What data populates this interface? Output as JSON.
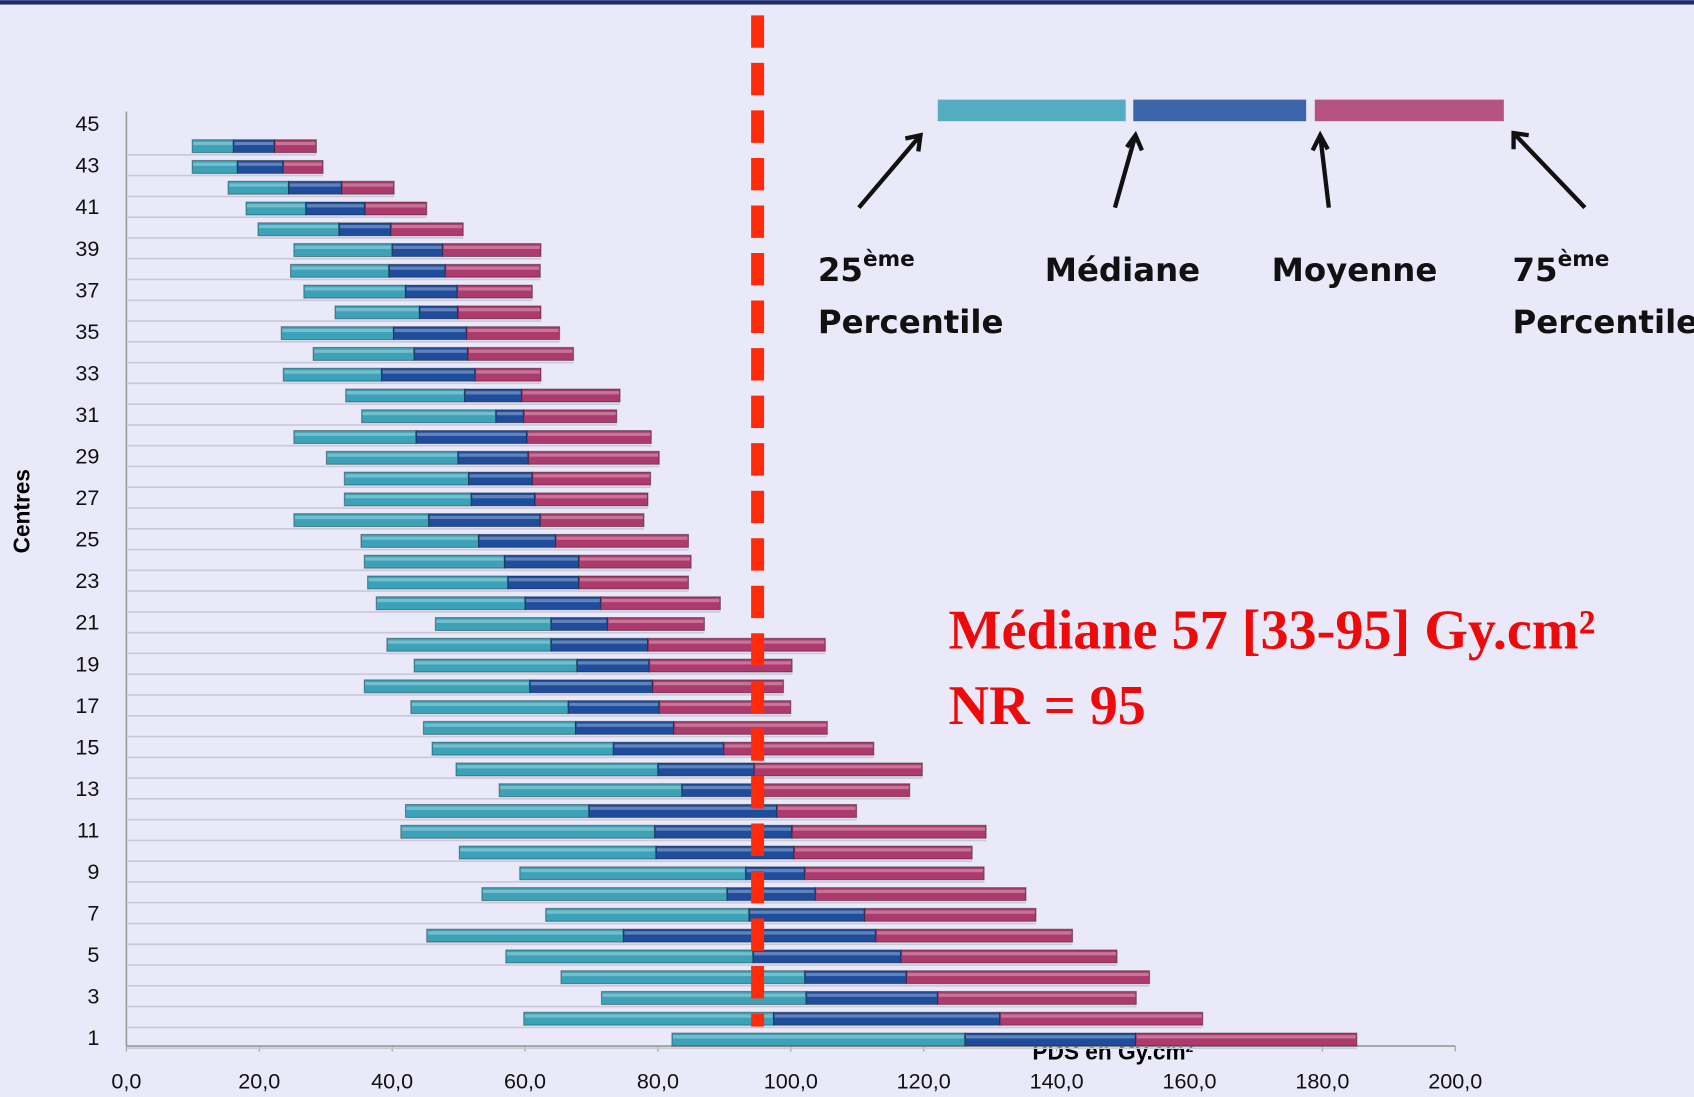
{
  "chart_data": {
    "type": "floating-bar",
    "xlabel": "PDS en Gy.cm²",
    "ylabel": "Centres",
    "categories": [
      "1",
      null,
      "3",
      null,
      "5",
      null,
      "7",
      null,
      "9",
      null,
      "11",
      null,
      "13",
      null,
      "15",
      null,
      "17",
      null,
      "19",
      null,
      "21",
      null,
      "23",
      null,
      "25",
      null,
      "27",
      null,
      "29",
      null,
      "31",
      null,
      "33",
      null,
      "35",
      null,
      "37",
      null,
      "39",
      null,
      "41",
      null,
      "43",
      null,
      "45"
    ],
    "p25": [
      82.1,
      59.8,
      71.5,
      65.4,
      57.1,
      45.2,
      63.1,
      53.5,
      59.2,
      50.1,
      41.3,
      42.0,
      56.1,
      49.6,
      46.0,
      44.7,
      42.8,
      35.8,
      43.3,
      39.2,
      46.5,
      37.6,
      36.3,
      35.8,
      35.3,
      25.2,
      32.8,
      32.8,
      30.1,
      25.2,
      35.4,
      33.0,
      23.6,
      28.1,
      23.3,
      31.4,
      26.7,
      24.7,
      25.2,
      19.8,
      18.0,
      15.3,
      9.9,
      9.9,
      null
    ],
    "median": [
      126.2,
      97.4,
      102.3,
      102.1,
      94.3,
      74.8,
      93.7,
      90.4,
      93.2,
      79.7,
      79.5,
      69.6,
      83.6,
      80.0,
      73.3,
      67.6,
      66.5,
      60.7,
      67.8,
      63.9,
      63.9,
      60.0,
      57.4,
      56.9,
      53.0,
      45.5,
      51.9,
      51.5,
      49.9,
      43.6,
      55.6,
      50.9,
      38.4,
      43.3,
      40.2,
      44.1,
      42.0,
      39.5,
      40.0,
      32.0,
      27.0,
      24.4,
      16.7,
      16.1,
      null
    ],
    "mean": [
      151.9,
      131.5,
      122.1,
      117.4,
      116.6,
      112.8,
      111.1,
      103.7,
      102.1,
      100.5,
      100.2,
      97.9,
      95.8,
      94.5,
      89.9,
      82.4,
      80.2,
      79.2,
      78.7,
      78.5,
      72.4,
      71.4,
      68.1,
      68.1,
      64.6,
      62.3,
      61.5,
      61.1,
      60.5,
      60.3,
      59.8,
      59.5,
      52.5,
      51.4,
      51.2,
      49.9,
      49.8,
      48.0,
      47.6,
      39.8,
      35.9,
      32.4,
      23.6,
      22.3,
      null
    ],
    "p75": [
      185.2,
      162.0,
      152.0,
      154.0,
      149.1,
      142.4,
      136.9,
      135.4,
      129.1,
      127.3,
      129.4,
      109.9,
      117.9,
      119.8,
      112.5,
      105.5,
      100.0,
      98.9,
      100.2,
      105.2,
      87.0,
      89.4,
      84.6,
      85.0,
      84.6,
      77.9,
      78.5,
      78.9,
      80.2,
      79.0,
      73.8,
      74.3,
      62.4,
      67.3,
      65.2,
      62.4,
      61.1,
      62.3,
      62.4,
      50.7,
      45.2,
      40.3,
      29.6,
      28.6,
      null
    ],
    "segment_colors": [
      "#3ba2b8",
      "#1f4d9c",
      "#ad3a6c"
    ],
    "xlim": [
      0,
      200
    ],
    "xticks": [
      {
        "value": 0,
        "label": "0,0"
      },
      {
        "value": 20,
        "label": "20,0"
      },
      {
        "value": 40,
        "label": "40,0"
      },
      {
        "value": 60,
        "label": "60,0"
      },
      {
        "value": 80,
        "label": "80,0"
      },
      {
        "value": 100,
        "label": "100,0"
      },
      {
        "value": 120,
        "label": "120,0"
      },
      {
        "value": 140,
        "label": "140,0"
      },
      {
        "value": 160,
        "label": "160,0"
      },
      {
        "value": 180,
        "label": "180,0"
      },
      {
        "value": 200,
        "label": "200,0"
      }
    ],
    "reference_line": {
      "value": 95,
      "color": "#ff2a0a"
    },
    "legend": [
      {
        "text": "25",
        "sup": "ème",
        "text2": "Percentile"
      },
      {
        "text": "Médiane"
      },
      {
        "text": "Moyenne"
      },
      {
        "text": "75",
        "sup": "ème",
        "text2": "Percentile"
      }
    ],
    "annotations": [
      "Médiane 57 [33-95] Gy.cm²",
      "NR = 95"
    ]
  }
}
